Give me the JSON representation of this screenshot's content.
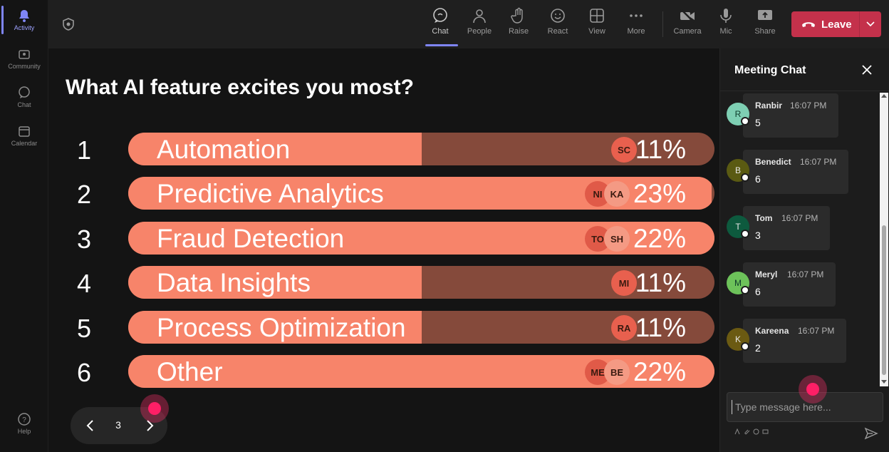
{
  "rail": {
    "items": [
      {
        "label": "Activity",
        "icon": "bell-icon",
        "active": true
      },
      {
        "label": "Community",
        "icon": "community-icon",
        "active": false
      },
      {
        "label": "Chat",
        "icon": "chat-icon",
        "active": false
      },
      {
        "label": "Calendar",
        "icon": "calendar-icon",
        "active": false
      }
    ],
    "help_label": "Help"
  },
  "toolbar": {
    "items": [
      {
        "label": "Chat",
        "icon": "chat-icon",
        "active": true
      },
      {
        "label": "People",
        "icon": "people-icon",
        "active": false
      },
      {
        "label": "Raise",
        "icon": "hand-icon",
        "active": false
      },
      {
        "label": "React",
        "icon": "smile-icon",
        "active": false
      },
      {
        "label": "View",
        "icon": "grid-icon",
        "active": false
      },
      {
        "label": "More",
        "icon": "more-icon",
        "active": false
      },
      {
        "label": "Camera",
        "icon": "camera-off-icon",
        "active": false
      },
      {
        "label": "Mic",
        "icon": "mic-icon",
        "active": false
      },
      {
        "label": "Share",
        "icon": "share-icon",
        "active": false
      }
    ],
    "leave_label": "Leave",
    "leave_color": "#c4314b"
  },
  "poll": {
    "question": "What AI feature excites you most?",
    "options": [
      {
        "rank": "1",
        "label": "Automation",
        "percent": "11%",
        "fill": 0.5,
        "avatars": [
          "SC"
        ]
      },
      {
        "rank": "2",
        "label": "Predictive Analytics",
        "percent": "23%",
        "fill": 0.995,
        "avatars": [
          "NI",
          "KA"
        ]
      },
      {
        "rank": "3",
        "label": "Fraud Detection",
        "percent": "22%",
        "fill": 1.0,
        "avatars": [
          "TO",
          "SH"
        ]
      },
      {
        "rank": "4",
        "label": "Data Insights",
        "percent": "11%",
        "fill": 0.5,
        "avatars": [
          "MI"
        ]
      },
      {
        "rank": "5",
        "label": "Process Optimization",
        "percent": "11%",
        "fill": 0.5,
        "avatars": [
          "RA"
        ]
      },
      {
        "rank": "6",
        "label": "Other",
        "percent": "22%",
        "fill": 1.0,
        "avatars": [
          "ME",
          "BE"
        ]
      }
    ],
    "bar_color": "#f7846a",
    "track_color": "#854a3b",
    "page": "3"
  },
  "chat": {
    "title": "Meeting Chat",
    "messages": [
      {
        "initial": "R",
        "name": "Ranbir",
        "time": "16:07 PM",
        "text": "5",
        "color": "#7ecfb3"
      },
      {
        "initial": "B",
        "name": "Benedict",
        "time": "16:07 PM",
        "text": "6",
        "color": "#5a5a12"
      },
      {
        "initial": "T",
        "name": "Tom",
        "time": "16:07 PM",
        "text": "3",
        "color": "#0d5a3e"
      },
      {
        "initial": "M",
        "name": "Meryl",
        "time": "16:07 PM",
        "text": "6",
        "color": "#6dc25a"
      },
      {
        "initial": "K",
        "name": "Kareena",
        "time": "16:07 PM",
        "text": "2",
        "color": "#6b5a12"
      }
    ],
    "input_placeholder": "Type message here..."
  }
}
